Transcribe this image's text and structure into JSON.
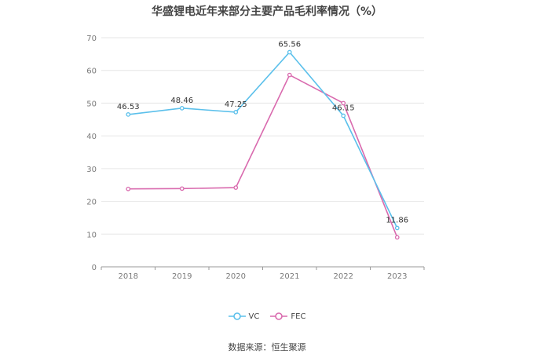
{
  "chart_data": {
    "type": "line",
    "title": "华盛锂电近年来部分主要产品毛利率情况（%）",
    "categories": [
      "2018",
      "2019",
      "2020",
      "2021",
      "2022",
      "2023"
    ],
    "ylim": [
      0,
      70
    ],
    "yticks": [
      0,
      10,
      20,
      30,
      40,
      50,
      60,
      70
    ],
    "grid": true,
    "legend_position": "bottom",
    "series": [
      {
        "name": "VC",
        "color": "#5bc0eb",
        "values": [
          46.53,
          48.46,
          47.25,
          65.56,
          46.15,
          11.86
        ],
        "labels": [
          "46.53",
          "48.46",
          "47.25",
          "65.56",
          "46.15",
          "11.86"
        ]
      },
      {
        "name": "FEC",
        "color": "#d96aae",
        "values": [
          23.8,
          23.9,
          24.2,
          58.6,
          50.0,
          9.0
        ]
      }
    ]
  },
  "source": "数据来源：恒生聚源"
}
